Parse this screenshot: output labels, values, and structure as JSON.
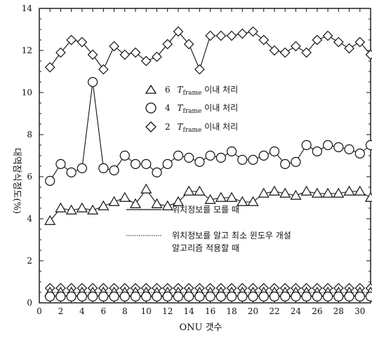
{
  "chart_data": {
    "type": "line",
    "xlabel": "ONU 갯수",
    "ylabel": "대역잠식정도(%)",
    "xlim": [
      0,
      31
    ],
    "ylim": [
      0,
      14
    ],
    "x_ticks": [
      0,
      2,
      4,
      6,
      8,
      10,
      12,
      14,
      16,
      18,
      20,
      22,
      24,
      26,
      28,
      30
    ],
    "y_ticks": [
      0,
      2,
      4,
      6,
      8,
      10,
      12,
      14
    ],
    "legend_markers": {
      "triangle": {
        "num": "6",
        "T": "T",
        "sub": "frame",
        "text": " 이내 처리"
      },
      "circle": {
        "num": "4",
        "T": "T",
        "sub": "frame",
        "text": " 이내 처리"
      },
      "diamond": {
        "num": "2",
        "T": "T",
        "sub": "frame",
        "text": " 이내 처리"
      }
    },
    "legend_lines": {
      "solid": "위치정보를 모를 때",
      "dotted_line1": "위치정보를 알고 최소 윈도우 개설",
      "dotted_line2": "알고리즘 적용할 때"
    },
    "series": [
      {
        "marker": "diamond",
        "line": "solid",
        "x": [
          1,
          2,
          3,
          4,
          5,
          6,
          7,
          8,
          9,
          10,
          11,
          12,
          13,
          14,
          15,
          16,
          17,
          18,
          19,
          20,
          21,
          22,
          23,
          24,
          25,
          26,
          27,
          28,
          29,
          30,
          31
        ],
        "values": [
          11.2,
          11.9,
          12.5,
          12.4,
          11.8,
          11.1,
          12.2,
          11.8,
          11.9,
          11.5,
          11.7,
          12.3,
          12.9,
          12.3,
          11.1,
          12.7,
          12.7,
          12.7,
          12.8,
          12.9,
          12.5,
          12.0,
          11.9,
          12.2,
          11.9,
          12.5,
          12.7,
          12.4,
          12.1,
          12.4,
          11.8
        ]
      },
      {
        "marker": "circle",
        "line": "solid",
        "x": [
          1,
          2,
          3,
          4,
          5,
          6,
          7,
          8,
          9,
          10,
          11,
          12,
          13,
          14,
          15,
          16,
          17,
          18,
          19,
          20,
          21,
          22,
          23,
          24,
          25,
          26,
          27,
          28,
          29,
          30,
          31
        ],
        "values": [
          5.8,
          6.6,
          6.2,
          6.4,
          10.5,
          6.4,
          6.3,
          7.0,
          6.6,
          6.6,
          6.2,
          6.6,
          7.0,
          6.9,
          6.7,
          7.0,
          6.9,
          7.2,
          6.8,
          6.8,
          7.0,
          7.2,
          6.6,
          6.7,
          7.5,
          7.2,
          7.5,
          7.4,
          7.3,
          7.1,
          7.5
        ]
      },
      {
        "marker": "triangle",
        "line": "solid",
        "x": [
          1,
          2,
          3,
          4,
          5,
          6,
          7,
          8,
          9,
          10,
          11,
          12,
          13,
          14,
          15,
          16,
          17,
          18,
          19,
          20,
          21,
          22,
          23,
          24,
          25,
          26,
          27,
          28,
          29,
          30,
          31
        ],
        "values": [
          3.9,
          4.5,
          4.4,
          4.5,
          4.4,
          4.6,
          4.8,
          5.0,
          4.7,
          5.4,
          4.7,
          4.6,
          4.8,
          5.3,
          5.3,
          4.9,
          5.0,
          5.0,
          4.8,
          4.8,
          5.2,
          5.3,
          5.2,
          5.1,
          5.3,
          5.2,
          5.2,
          5.2,
          5.3,
          5.3,
          5.0
        ]
      },
      {
        "marker": "diamond",
        "line": "dotted",
        "x": [
          1,
          2,
          3,
          4,
          5,
          6,
          7,
          8,
          9,
          10,
          11,
          12,
          13,
          14,
          15,
          16,
          17,
          18,
          19,
          20,
          21,
          22,
          23,
          24,
          25,
          26,
          27,
          28,
          29,
          30,
          31
        ],
        "values": [
          0.7,
          0.7,
          0.7,
          0.7,
          0.7,
          0.7,
          0.7,
          0.7,
          0.7,
          0.7,
          0.7,
          0.7,
          0.7,
          0.7,
          0.7,
          0.7,
          0.7,
          0.7,
          0.7,
          0.7,
          0.7,
          0.7,
          0.7,
          0.7,
          0.7,
          0.7,
          0.7,
          0.7,
          0.7,
          0.7,
          0.7
        ]
      },
      {
        "marker": "triangle",
        "line": "dotted",
        "x": [
          1,
          2,
          3,
          4,
          5,
          6,
          7,
          8,
          9,
          10,
          11,
          12,
          13,
          14,
          15,
          16,
          17,
          18,
          19,
          20,
          21,
          22,
          23,
          24,
          25,
          26,
          27,
          28,
          29,
          30,
          31
        ],
        "values": [
          0.5,
          0.5,
          0.5,
          0.5,
          0.5,
          0.5,
          0.5,
          0.5,
          0.5,
          0.5,
          0.5,
          0.5,
          0.5,
          0.5,
          0.5,
          0.5,
          0.5,
          0.5,
          0.5,
          0.5,
          0.5,
          0.5,
          0.5,
          0.5,
          0.5,
          0.5,
          0.5,
          0.5,
          0.5,
          0.5,
          0.5
        ]
      },
      {
        "marker": "circle",
        "line": "dotted",
        "x": [
          1,
          2,
          3,
          4,
          5,
          6,
          7,
          8,
          9,
          10,
          11,
          12,
          13,
          14,
          15,
          16,
          17,
          18,
          19,
          20,
          21,
          22,
          23,
          24,
          25,
          26,
          27,
          28,
          29,
          30,
          31
        ],
        "values": [
          0.3,
          0.3,
          0.3,
          0.3,
          0.3,
          0.3,
          0.3,
          0.3,
          0.3,
          0.3,
          0.3,
          0.3,
          0.3,
          0.3,
          0.3,
          0.3,
          0.3,
          0.3,
          0.3,
          0.3,
          0.3,
          0.3,
          0.3,
          0.3,
          0.3,
          0.3,
          0.3,
          0.3,
          0.3,
          0.3,
          0.3
        ]
      }
    ],
    "grid": false,
    "legend_placement": "center"
  }
}
